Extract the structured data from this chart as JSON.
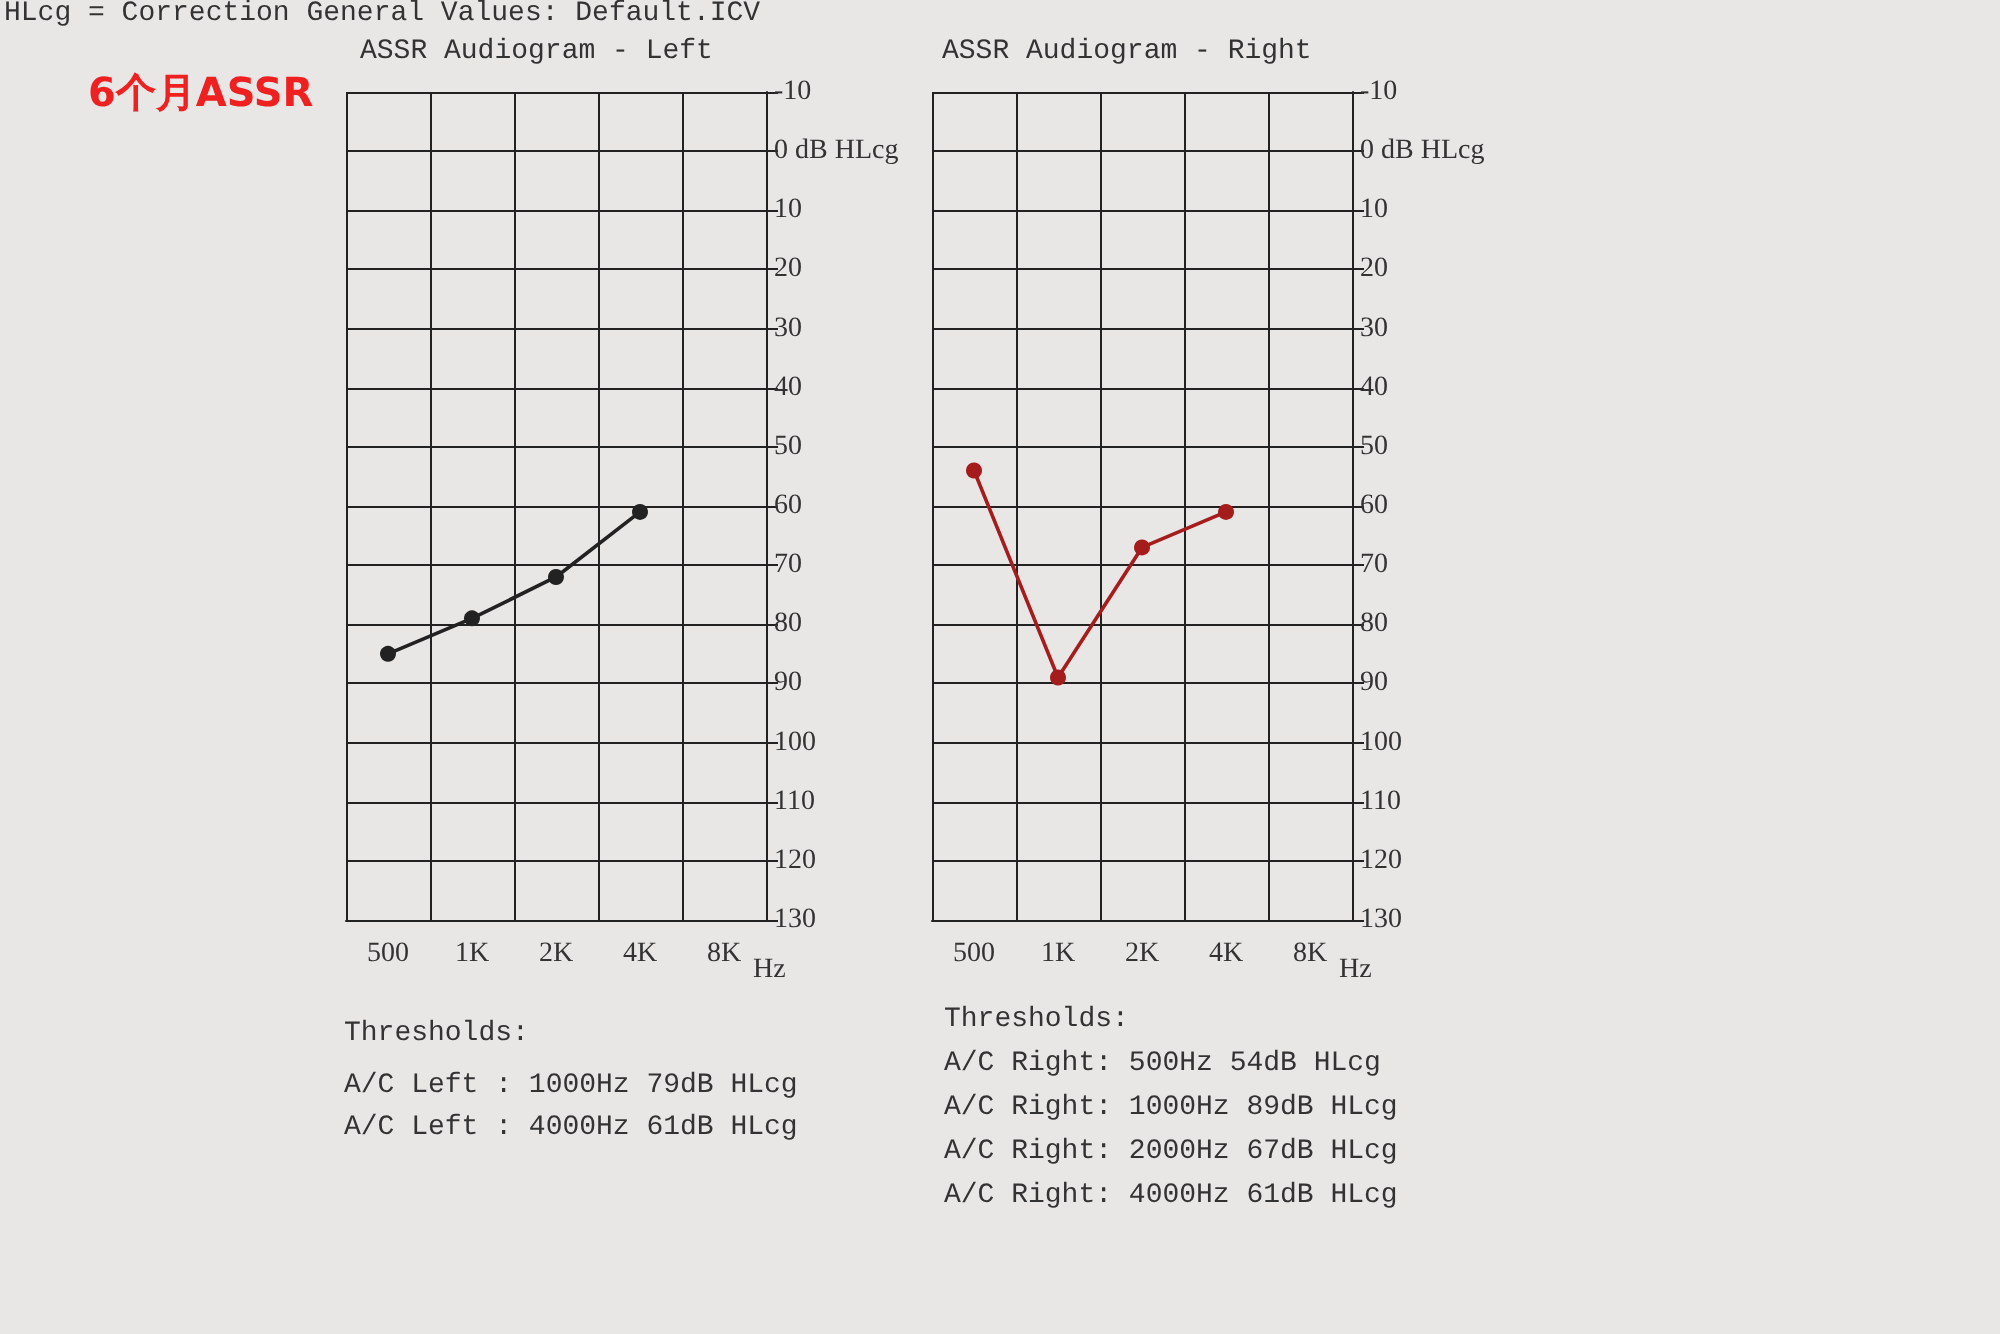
{
  "chart_data": [
    {
      "type": "line",
      "title": "ASSR Audiogram - Left",
      "xlabel": "Hz",
      "categories": [
        "500",
        "1K",
        "2K",
        "4K",
        "8K"
      ],
      "series": [
        {
          "color": "#222222",
          "values": [
            85,
            79,
            72,
            61,
            null
          ]
        }
      ],
      "ylim": [
        130,
        -10
      ],
      "yticks": [
        -10,
        {
          "value": 0,
          "label": "0 dB HLcg"
        },
        10,
        20,
        30,
        40,
        50,
        60,
        70,
        80,
        90,
        100,
        110,
        120,
        130
      ],
      "grid": true,
      "marker": "circle",
      "line_style": "solid",
      "annotations": [
        "HLcg = Correction General Values: Default.ICV",
        "6个月ASSR",
        "Thresholds:",
        "A/C Left : 1000Hz 79dB HLcg",
        "A/C Left : 4000Hz 61dB HLcg"
      ]
    },
    {
      "type": "line",
      "title": "ASSR Audiogram - Right",
      "xlabel": "Hz",
      "categories": [
        "500",
        "1K",
        "2K",
        "4K",
        "8K"
      ],
      "series": [
        {
          "color": "#a51c1c",
          "values": [
            54,
            89,
            67,
            61,
            null
          ]
        }
      ],
      "ylim": [
        130,
        -10
      ],
      "yticks": [
        -10,
        {
          "value": 0,
          "label": "0 dB HLcg"
        },
        10,
        20,
        30,
        40,
        50,
        60,
        70,
        80,
        90,
        100,
        110,
        120,
        130
      ],
      "grid": true,
      "marker": "circle",
      "line_style": "solid",
      "annotations": [
        "Thresholds:",
        "A/C Right: 500Hz 54dB HLcg",
        "A/C Right: 1000Hz 89dB HLcg",
        "A/C Right: 2000Hz 67dB HLcg",
        "A/C Right: 4000Hz 61dB HLcg"
      ]
    }
  ]
}
